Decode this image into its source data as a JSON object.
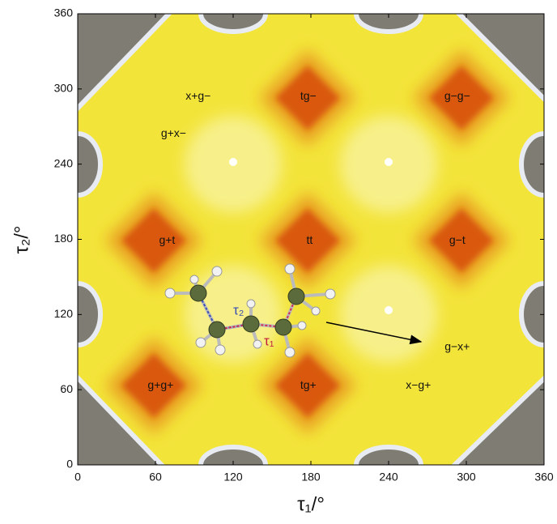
{
  "chart_data": {
    "type": "contour",
    "xlabel": "τ₁/°",
    "ylabel": "τ₂/°",
    "xlim": [
      0,
      360
    ],
    "ylim": [
      0,
      360
    ],
    "xticks": [
      0,
      60,
      120,
      180,
      240,
      300,
      360
    ],
    "yticks": [
      0,
      60,
      120,
      180,
      240,
      300,
      360
    ],
    "annotations": [
      {
        "text": "x+g−",
        "x": 93,
        "y": 294
      },
      {
        "text": "tg−",
        "x": 178,
        "y": 294
      },
      {
        "text": "g−g−",
        "x": 293,
        "y": 294
      },
      {
        "text": "g+x−",
        "x": 74,
        "y": 264
      },
      {
        "text": "g+t",
        "x": 69,
        "y": 179
      },
      {
        "text": "tt",
        "x": 179,
        "y": 179
      },
      {
        "text": "g−t",
        "x": 293,
        "y": 179
      },
      {
        "text": "g−x+",
        "x": 293,
        "y": 94
      },
      {
        "text": "g+g+",
        "x": 64,
        "y": 63
      },
      {
        "text": "tg+",
        "x": 178,
        "y": 63
      },
      {
        "text": "x−g+",
        "x": 263,
        "y": 63
      }
    ],
    "molecule_labels": [
      "τ₂",
      "τ₁"
    ]
  }
}
